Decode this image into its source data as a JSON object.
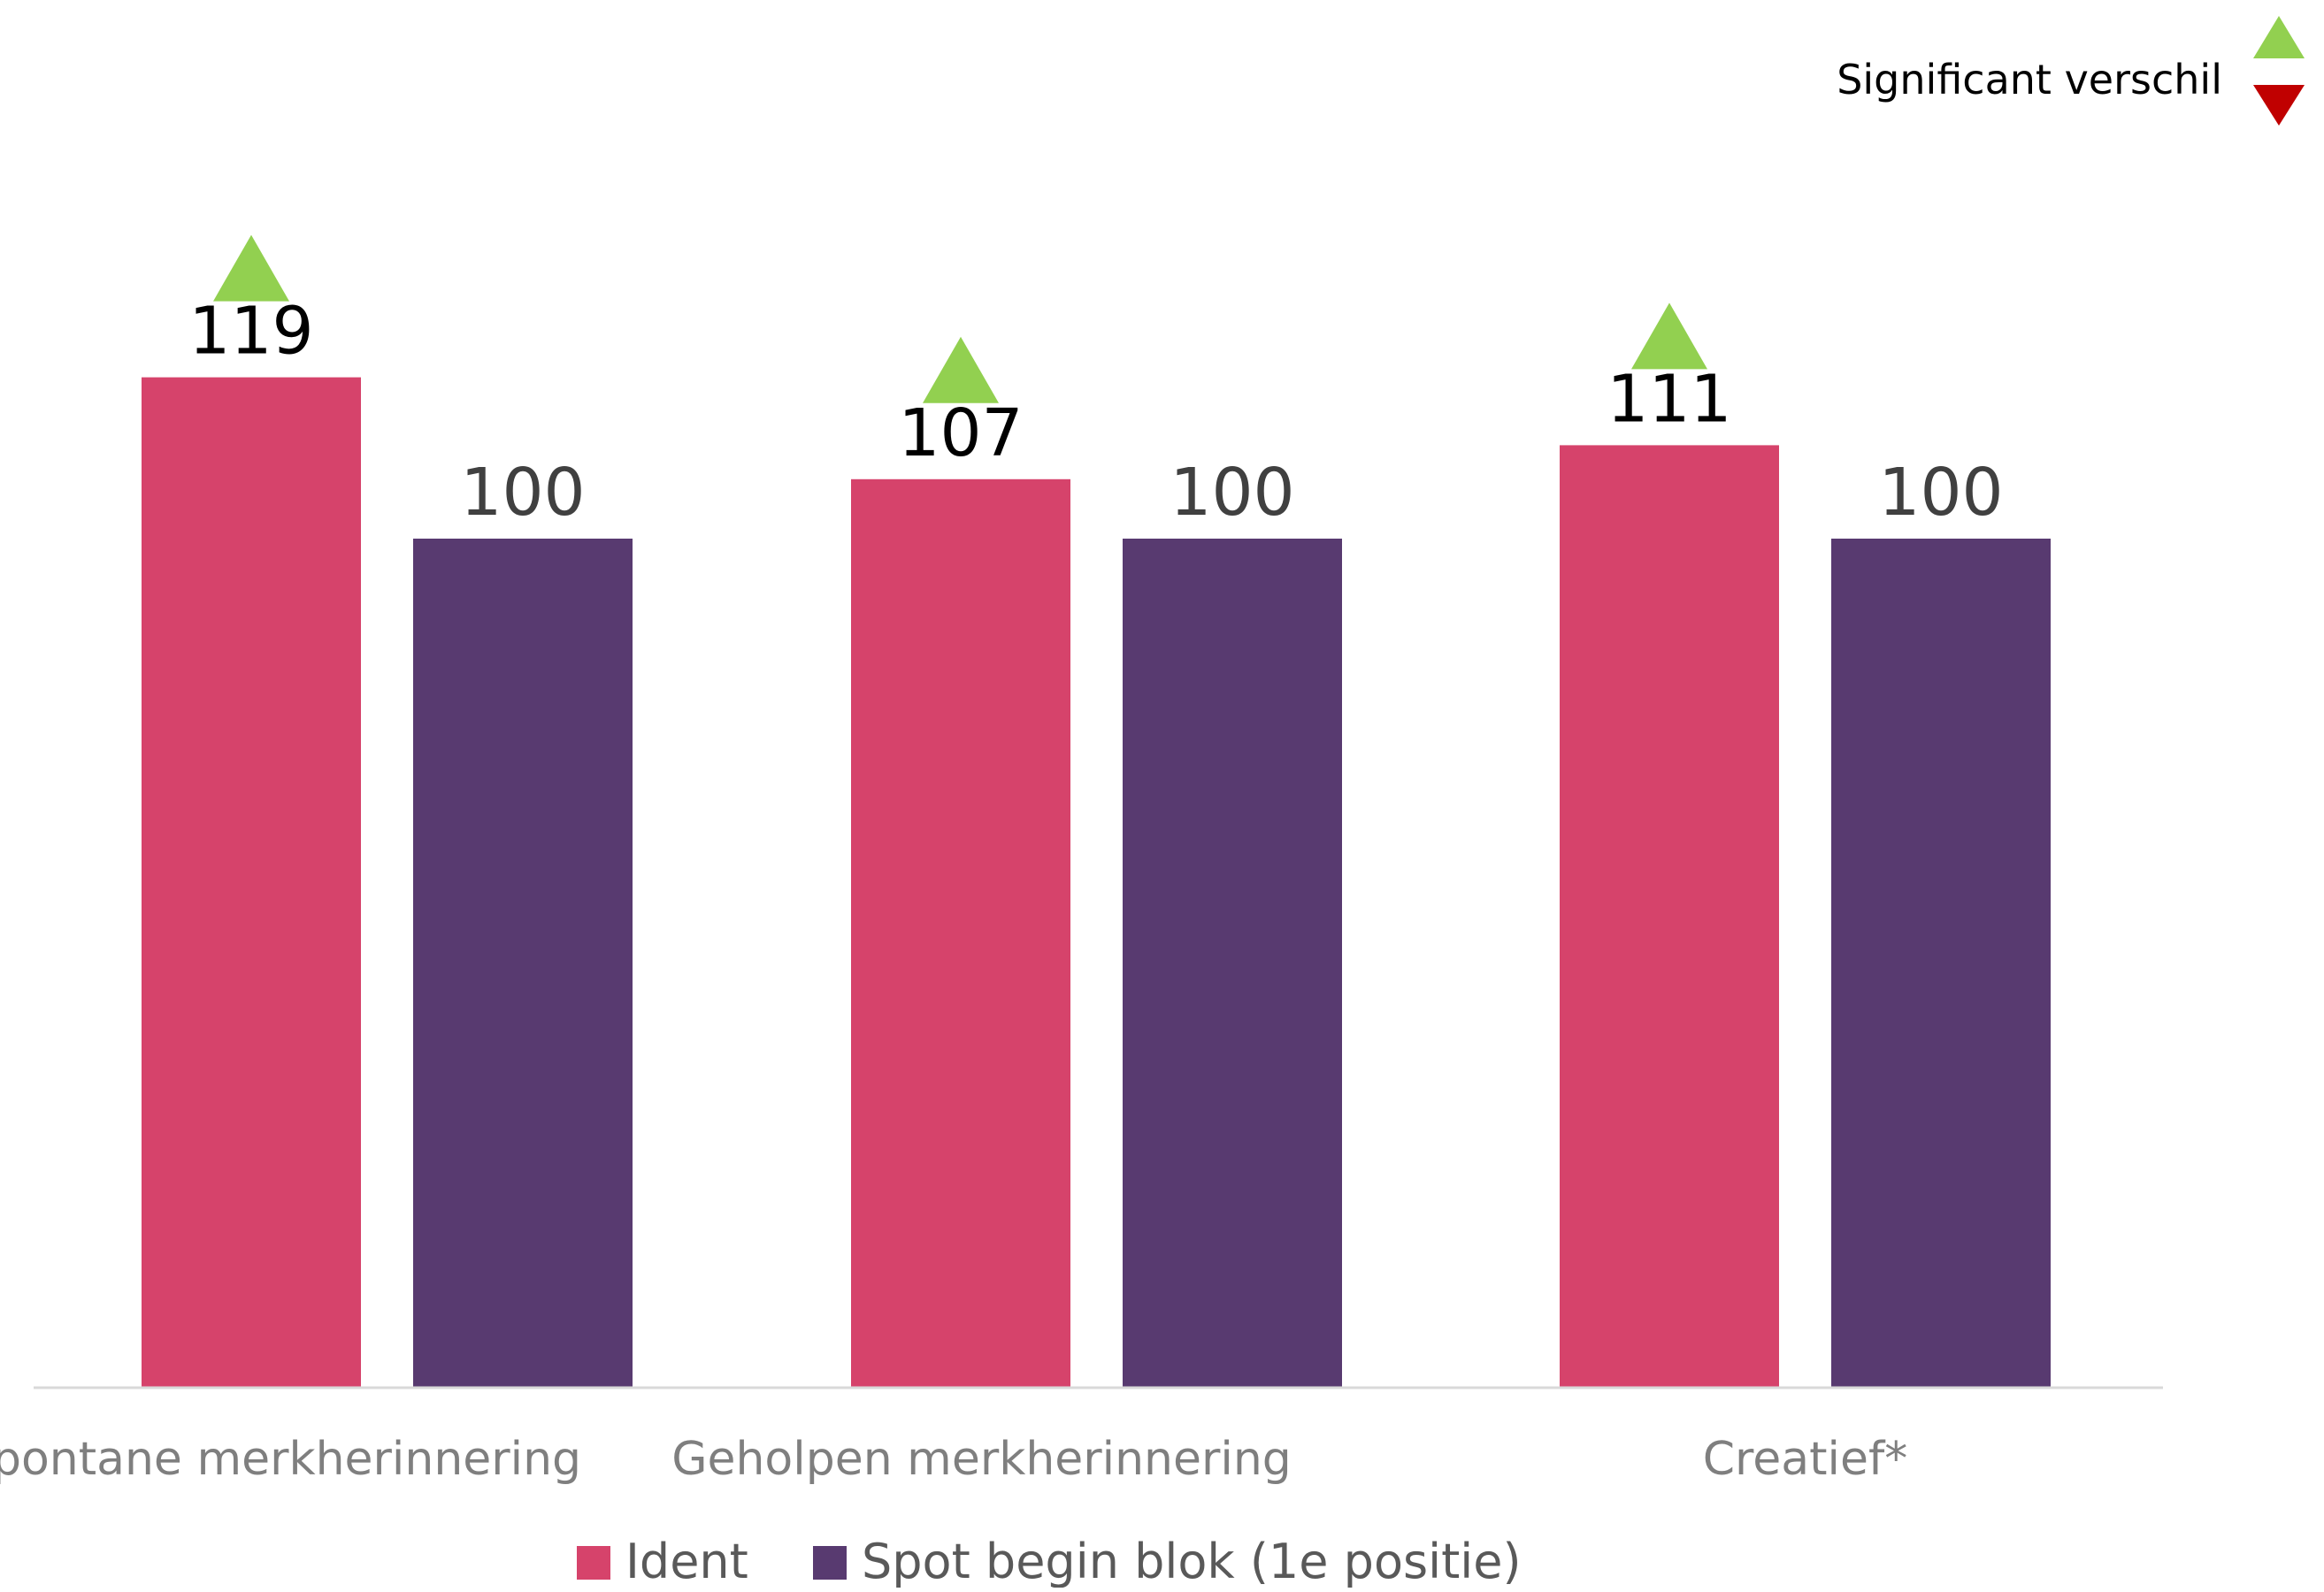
{
  "chart_data": {
    "type": "bar",
    "categories": [
      "Spontane merkherinnering",
      "Geholpen merkherinnering",
      "Creatief*"
    ],
    "series": [
      {
        "name": "Ident",
        "values": [
          119,
          107,
          111
        ],
        "color": "#D6436B",
        "significant": [
          "up",
          "up",
          "up"
        ]
      },
      {
        "name": "Spot begin blok (1e positie)",
        "values": [
          100,
          100,
          100
        ],
        "color": "#583A70",
        "significant": [
          null,
          null,
          null
        ]
      }
    ],
    "ylim": [
      0,
      180
    ],
    "grid": false,
    "legend": "bottom",
    "significance_legend": {
      "label": "Significant verschil",
      "up_color": "#92D050",
      "down_color": "#C00000"
    },
    "colors": {
      "axis": "#D9D9D9",
      "value_label": "#000000",
      "category_label": "#7F7F7F",
      "legend_text": "#595959"
    }
  }
}
